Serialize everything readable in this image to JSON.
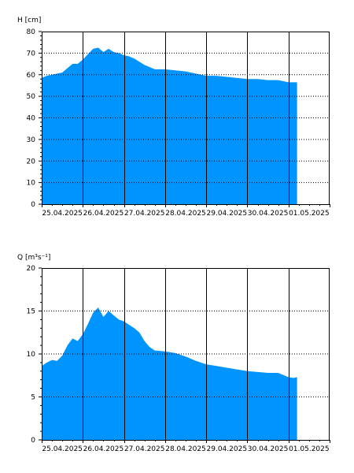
{
  "chart_data": [
    {
      "type": "area",
      "ylabel": "H [cm]",
      "ylim": [
        0,
        80
      ],
      "yticks": [
        "0",
        "10",
        "20",
        "30",
        "40",
        "50",
        "60",
        "70",
        "80"
      ],
      "x_range": [
        "2025-04-25T00:00",
        "2025-05-02T00:00"
      ],
      "xtick_labels": [
        "25.04.2025",
        "26.04.2025",
        "27.04.2025",
        "28.04.2025",
        "29.04.2025",
        "30.04.2025",
        "01.05.2025"
      ],
      "gridlines_vertical": [
        "2025-04-26",
        "2025-04-27",
        "2025-04-28",
        "2025-04-29",
        "2025-04-30",
        "2025-05-01"
      ],
      "grid_horizontal": "dotted",
      "fill_color": "#0094ff",
      "series": [
        {
          "x": [
            "2025-04-25T00:00",
            "2025-04-25T03:00",
            "2025-04-25T06:00",
            "2025-04-25T09:00",
            "2025-04-25T12:00",
            "2025-04-25T15:00",
            "2025-04-25T18:00",
            "2025-04-25T21:00",
            "2025-04-26T00:00",
            "2025-04-26T03:00",
            "2025-04-26T06:00",
            "2025-04-26T09:00",
            "2025-04-26T12:00",
            "2025-04-26T15:00",
            "2025-04-26T18:00",
            "2025-04-26T21:00",
            "2025-04-27T00:00",
            "2025-04-27T03:00",
            "2025-04-27T06:00",
            "2025-04-27T09:00",
            "2025-04-27T12:00",
            "2025-04-27T15:00",
            "2025-04-27T18:00",
            "2025-04-28T00:00",
            "2025-04-28T06:00",
            "2025-04-28T12:00",
            "2025-04-28T18:00",
            "2025-04-29T00:00",
            "2025-04-29T06:00",
            "2025-04-29T12:00",
            "2025-04-29T18:00",
            "2025-04-30T00:00",
            "2025-04-30T06:00",
            "2025-04-30T12:00",
            "2025-04-30T18:00",
            "2025-05-01T00:00",
            "2025-05-01T03:00",
            "2025-05-01T05:00"
          ],
          "y": [
            58.5,
            59.5,
            60,
            60.5,
            61,
            63,
            65,
            65,
            67,
            69.5,
            72,
            72.5,
            70.5,
            72,
            70.5,
            70,
            69,
            68.5,
            67.5,
            66,
            64.5,
            63.5,
            62.5,
            62.5,
            62,
            61.5,
            60.5,
            59.5,
            59.5,
            59,
            58.5,
            58,
            58,
            57.5,
            57.5,
            56.5,
            56.5,
            56.5
          ]
        }
      ]
    },
    {
      "type": "area",
      "ylabel": "Q [m³s⁻¹]",
      "ylim": [
        0,
        20
      ],
      "yticks": [
        "0",
        "5",
        "10",
        "15",
        "20"
      ],
      "x_range": [
        "2025-04-25T00:00",
        "2025-05-02T00:00"
      ],
      "xtick_labels": [
        "25.04.2025",
        "26.04.2025",
        "27.04.2025",
        "28.04.2025",
        "29.04.2025",
        "30.04.2025",
        "01.05.2025"
      ],
      "gridlines_vertical": [
        "2025-04-26",
        "2025-04-27",
        "2025-04-28",
        "2025-04-29",
        "2025-04-30",
        "2025-05-01"
      ],
      "grid_horizontal": "dotted",
      "fill_color": "#0094ff",
      "series": [
        {
          "x": [
            "2025-04-25T00:00",
            "2025-04-25T03:00",
            "2025-04-25T06:00",
            "2025-04-25T09:00",
            "2025-04-25T12:00",
            "2025-04-25T15:00",
            "2025-04-25T18:00",
            "2025-04-25T21:00",
            "2025-04-26T00:00",
            "2025-04-26T03:00",
            "2025-04-26T06:00",
            "2025-04-26T09:00",
            "2025-04-26T12:00",
            "2025-04-26T15:00",
            "2025-04-26T18:00",
            "2025-04-26T21:00",
            "2025-04-27T00:00",
            "2025-04-27T03:00",
            "2025-04-27T06:00",
            "2025-04-27T09:00",
            "2025-04-27T12:00",
            "2025-04-27T15:00",
            "2025-04-27T18:00",
            "2025-04-28T00:00",
            "2025-04-28T06:00",
            "2025-04-28T12:00",
            "2025-04-28T18:00",
            "2025-04-29T00:00",
            "2025-04-29T06:00",
            "2025-04-29T12:00",
            "2025-04-29T18:00",
            "2025-04-30T00:00",
            "2025-04-30T06:00",
            "2025-04-30T12:00",
            "2025-04-30T18:00",
            "2025-05-01T00:00",
            "2025-05-01T03:00",
            "2025-05-01T05:00"
          ],
          "y": [
            8.6,
            9,
            9.3,
            9.2,
            9.8,
            11,
            11.8,
            11.5,
            12.3,
            13.5,
            14.8,
            15.4,
            14.3,
            15,
            14.5,
            14,
            13.8,
            13.4,
            13,
            12.5,
            11.5,
            10.8,
            10.4,
            10.3,
            10.1,
            9.7,
            9.2,
            8.8,
            8.6,
            8.4,
            8.2,
            8,
            7.9,
            7.8,
            7.8,
            7.3,
            7.2,
            7.3
          ]
        }
      ]
    }
  ]
}
